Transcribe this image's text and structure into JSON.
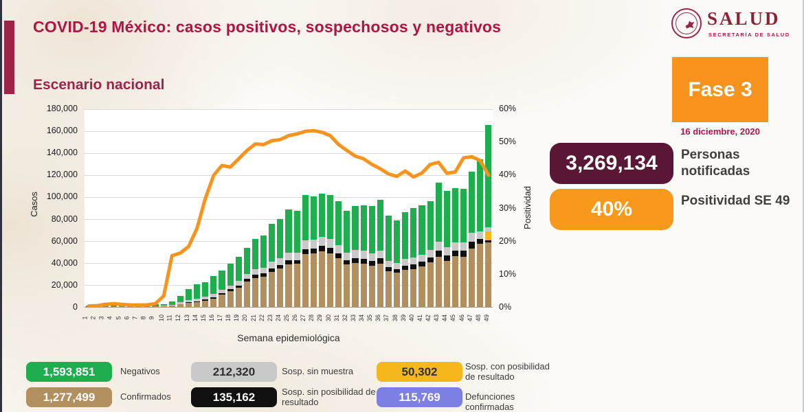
{
  "header": {
    "title": "COVID-19 México: casos positivos, sospechosos y negativos",
    "subtitle": "Escenario nacional",
    "logo": {
      "name": "SALUD",
      "subname": "SECRETARÍA DE SALUD"
    }
  },
  "phase": {
    "label": "Fase 3",
    "date": "16 diciembre, 2020"
  },
  "stats": [
    {
      "value": "3,269,134",
      "label": "Personas notificadas",
      "color": "#5a1635"
    },
    {
      "value": "40%",
      "label": "Positividad SE 49",
      "color": "#f8981d"
    }
  ],
  "legend": [
    {
      "value": "1,593,851",
      "label": "Negativos",
      "color": "#1fae4e",
      "text_color": "#ffffff"
    },
    {
      "value": "212,320",
      "label": "Sosp. sin muestra",
      "color": "#c9c9c9",
      "text_color": "#2f2f2f"
    },
    {
      "value": "50,302",
      "label": "Sosp. con posibilidad de resultado",
      "color": "#f6b71d",
      "text_color": "#2f2f2f"
    },
    {
      "value": "1,277,499",
      "label": "Confirmados",
      "color": "#b28f5e",
      "text_color": "#ffffff"
    },
    {
      "value": "135,162",
      "label": "Sosp. sin posibilidad de resultado",
      "color": "#101010",
      "text_color": "#ffffff"
    },
    {
      "value": "115,769",
      "label": "Defunciones confirmadas",
      "color": "#7d80e2",
      "text_color": "#ffffff"
    }
  ],
  "chart_data": {
    "type": "bar",
    "subtype": "stacked-bars-with-line",
    "title": "Escenario nacional",
    "xlabel": "Semana epidemiológica",
    "ylabel": "Casos",
    "ylabel_right": "Positividad",
    "ylim": [
      0,
      180000
    ],
    "ylim_right_pct": [
      0,
      60
    ],
    "yticks_left": [
      "0",
      "20,000",
      "40,000",
      "60,000",
      "80,000",
      "100,000",
      "120,000",
      "140,000",
      "160,000",
      "180,000"
    ],
    "yticks_right": [
      "0%",
      "10%",
      "20%",
      "30%",
      "40%",
      "50%",
      "60%"
    ],
    "grid": true,
    "categories": [
      1,
      2,
      3,
      4,
      5,
      6,
      7,
      8,
      9,
      10,
      11,
      12,
      13,
      14,
      15,
      16,
      17,
      18,
      19,
      20,
      21,
      22,
      23,
      24,
      25,
      26,
      27,
      28,
      29,
      30,
      31,
      32,
      33,
      34,
      35,
      36,
      37,
      38,
      39,
      40,
      41,
      42,
      43,
      44,
      45,
      46,
      47,
      48,
      49
    ],
    "series": [
      {
        "name": "Confirmados",
        "color": "#b28f5e",
        "values": [
          200,
          300,
          400,
          500,
          400,
          400,
          400,
          400,
          500,
          700,
          1400,
          2300,
          3500,
          4400,
          5600,
          7700,
          11000,
          14200,
          17600,
          23200,
          26300,
          27500,
          31800,
          34700,
          38800,
          39000,
          48000,
          48500,
          50500,
          48800,
          44300,
          38500,
          39800,
          39500,
          37500,
          39500,
          32500,
          31000,
          33500,
          34500,
          37000,
          40500,
          45500,
          41500,
          46000,
          45500,
          53000,
          57000,
          58500
        ]
      },
      {
        "name": "Sosp. sin posibilidad de resultado",
        "color": "#101010",
        "values": [
          0,
          0,
          0,
          0,
          0,
          0,
          0,
          0,
          0,
          100,
          100,
          400,
          700,
          900,
          1000,
          1200,
          1500,
          1700,
          2000,
          2300,
          2700,
          2800,
          3200,
          3300,
          3700,
          3500,
          4500,
          4500,
          4800,
          4500,
          4300,
          4000,
          4200,
          4300,
          4200,
          4500,
          3800,
          3500,
          4000,
          4300,
          4200,
          4500,
          5500,
          5000,
          5000,
          5500,
          6000,
          4500,
          1800
        ]
      },
      {
        "name": "Sosp. con posibilidad de resultado",
        "color": "#f6b71d",
        "values": [
          0,
          0,
          0,
          0,
          0,
          0,
          0,
          0,
          0,
          0,
          0,
          0,
          0,
          0,
          0,
          0,
          0,
          0,
          0,
          0,
          0,
          0,
          0,
          0,
          0,
          0,
          0,
          0,
          0,
          0,
          0,
          0,
          0,
          0,
          0,
          0,
          0,
          0,
          0,
          0,
          0,
          0,
          0,
          0,
          0,
          0,
          0,
          0,
          8500
        ]
      },
      {
        "name": "Sosp. sin muestra",
        "color": "#c9c9c9",
        "values": [
          0,
          0,
          100,
          100,
          100,
          100,
          100,
          100,
          200,
          200,
          700,
          1500,
          2300,
          2500,
          2500,
          2900,
          3000,
          3600,
          4100,
          4500,
          5000,
          5500,
          6000,
          6500,
          7000,
          7000,
          8000,
          8000,
          8200,
          8200,
          7700,
          7000,
          7500,
          7200,
          6800,
          7200,
          5700,
          5500,
          6000,
          6200,
          6300,
          6500,
          8000,
          7500,
          7500,
          7500,
          8500,
          7000,
          3200
        ]
      },
      {
        "name": "Negativos",
        "color": "#1fae4e",
        "values": [
          1000,
          1200,
          2300,
          2400,
          1700,
          1800,
          1700,
          1500,
          1500,
          1600,
          3000,
          6000,
          10000,
          12500,
          13500,
          16000,
          17500,
          19500,
          21500,
          23500,
          27500,
          29000,
          34500,
          35000,
          39000,
          38000,
          41000,
          39500,
          39500,
          40000,
          39500,
          37500,
          40000,
          41000,
          43000,
          46000,
          41000,
          38500,
          42500,
          45000,
          44500,
          44500,
          53500,
          51000,
          49000,
          48500,
          55500,
          65500,
          93000
        ]
      }
    ],
    "line": {
      "name": "Positividad",
      "color": "#f8941d",
      "values_pct": [
        0.5,
        0.6,
        1.0,
        1.2,
        1.0,
        0.8,
        0.8,
        0.8,
        1.2,
        3.5,
        15.7,
        16.5,
        18.5,
        24,
        33,
        40,
        43,
        42.5,
        45,
        47.5,
        49.5,
        49.3,
        50.5,
        50.8,
        52,
        52.5,
        53.3,
        53.5,
        53,
        52,
        49.3,
        47.5,
        45.8,
        45,
        43.3,
        42,
        40.4,
        39.7,
        41.3,
        39.5,
        40.7,
        43.3,
        43.9,
        40.6,
        41,
        45.3,
        45.6,
        44.5,
        40
      ]
    },
    "legend_position": "bottom"
  }
}
